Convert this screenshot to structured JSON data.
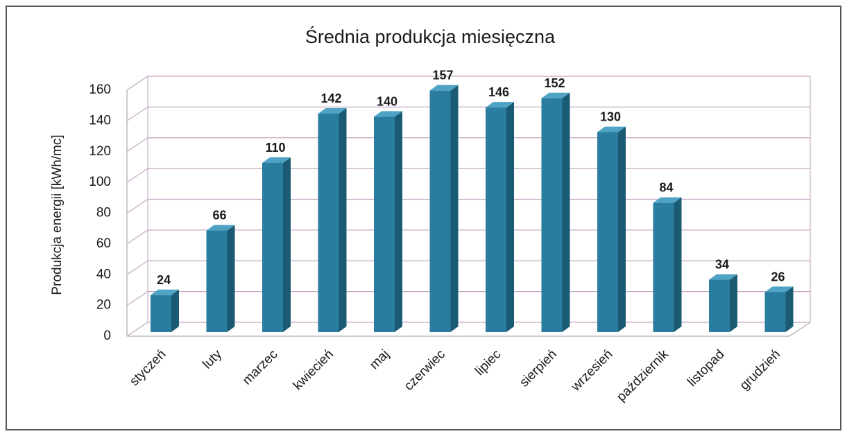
{
  "chart_data": {
    "type": "bar3d",
    "title": "Średnia produkcja miesięczna",
    "y_label": "Produkcja energii [kWh/mc]",
    "categories": [
      "styczeń",
      "luty",
      "marzec",
      "kwiecień",
      "maj",
      "czerwiec",
      "lipiec",
      "sierpień",
      "wrzesień",
      "październik",
      "listopad",
      "grudzień"
    ],
    "values": [
      24,
      66,
      110,
      142,
      140,
      157,
      146,
      152,
      130,
      84,
      34,
      26
    ],
    "color": "#2a7d9e",
    "ylim": [
      0,
      160
    ],
    "yticks": [
      0,
      20,
      40,
      60,
      80,
      100,
      120,
      140,
      160
    ],
    "grid": true
  }
}
